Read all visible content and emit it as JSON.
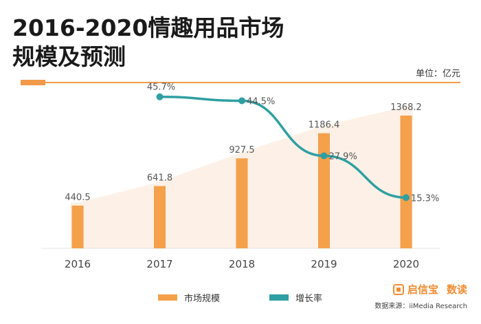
{
  "title_line1": "2016-2020情趣用品市场",
  "title_line2": "规模及预测",
  "unit": "单位：亿元",
  "legend": {
    "bar_label": "市场规模",
    "line_label": "增长率"
  },
  "brand": {
    "name": "启信宝",
    "suffix": "数读"
  },
  "source": "数据来源：iiMedia Research",
  "colors": {
    "bar": "#f5a04b",
    "line": "#2f9fa2",
    "area": "#fdf1e7",
    "accent": "#f19a4a"
  },
  "chart_data": {
    "type": "bar",
    "title": "2016-2020情趣用品市场规模及预测",
    "categories": [
      "2016",
      "2017",
      "2018",
      "2019",
      "2020"
    ],
    "series": [
      {
        "name": "市场规模",
        "type": "bar",
        "unit": "亿元",
        "values": [
          440.5,
          641.8,
          927.5,
          1186.4,
          1368.2
        ],
        "labels": [
          "440.5",
          "641.8",
          "927.5",
          "1186.4",
          "1368.2"
        ]
      },
      {
        "name": "增长率",
        "type": "line",
        "unit": "%",
        "values": [
          null,
          45.7,
          44.5,
          27.9,
          15.3
        ],
        "labels": [
          "",
          "45.7%",
          "44.5%",
          "27.9%",
          "15.3%"
        ]
      }
    ],
    "ylim": [
      0,
      1400
    ],
    "y2lim": [
      0,
      50
    ],
    "grid": false,
    "legend_position": "bottom"
  }
}
